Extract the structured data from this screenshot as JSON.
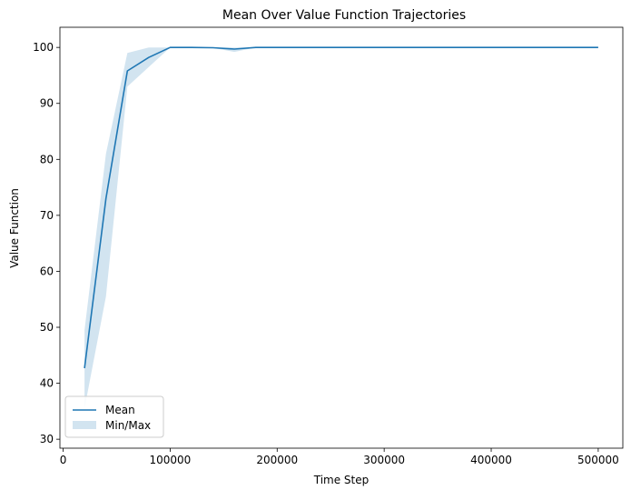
{
  "chart_data": {
    "type": "line",
    "title": "Mean Over Value Function Trajectories",
    "xlabel": "Time Step",
    "ylabel": "Value Function",
    "xlim": [
      -3000,
      523000
    ],
    "ylim": [
      28.4,
      103.6
    ],
    "xticks": [
      0,
      100000,
      200000,
      300000,
      400000,
      500000
    ],
    "yticks": [
      30,
      40,
      50,
      60,
      70,
      80,
      90,
      100
    ],
    "grid": false,
    "legend": {
      "placement": "lower-left"
    },
    "series": [
      {
        "name": "Mean",
        "kind": "line",
        "color": "#1f77b4",
        "x": [
          20000,
          40000,
          60000,
          80000,
          100000,
          120000,
          140000,
          160000,
          180000,
          200000,
          300000,
          400000,
          500000
        ],
        "y": [
          42.7,
          73,
          95.8,
          98.2,
          100,
          100,
          99.95,
          99.7,
          100,
          100,
          100,
          100,
          100
        ]
      },
      {
        "name": "Min/Max",
        "kind": "band",
        "color": "#1f77b4",
        "alpha": 0.2,
        "x": [
          20000,
          40000,
          60000,
          80000,
          100000,
          120000,
          140000,
          160000,
          180000,
          200000,
          300000,
          400000,
          500000
        ],
        "lower": [
          35.5,
          55.5,
          93,
          96.5,
          100,
          100,
          99.9,
          99.2,
          100,
          100,
          100,
          100,
          100
        ],
        "upper": [
          49.5,
          81,
          99,
          100,
          100,
          100,
          100,
          100,
          100,
          100,
          100,
          100,
          100
        ]
      }
    ]
  }
}
